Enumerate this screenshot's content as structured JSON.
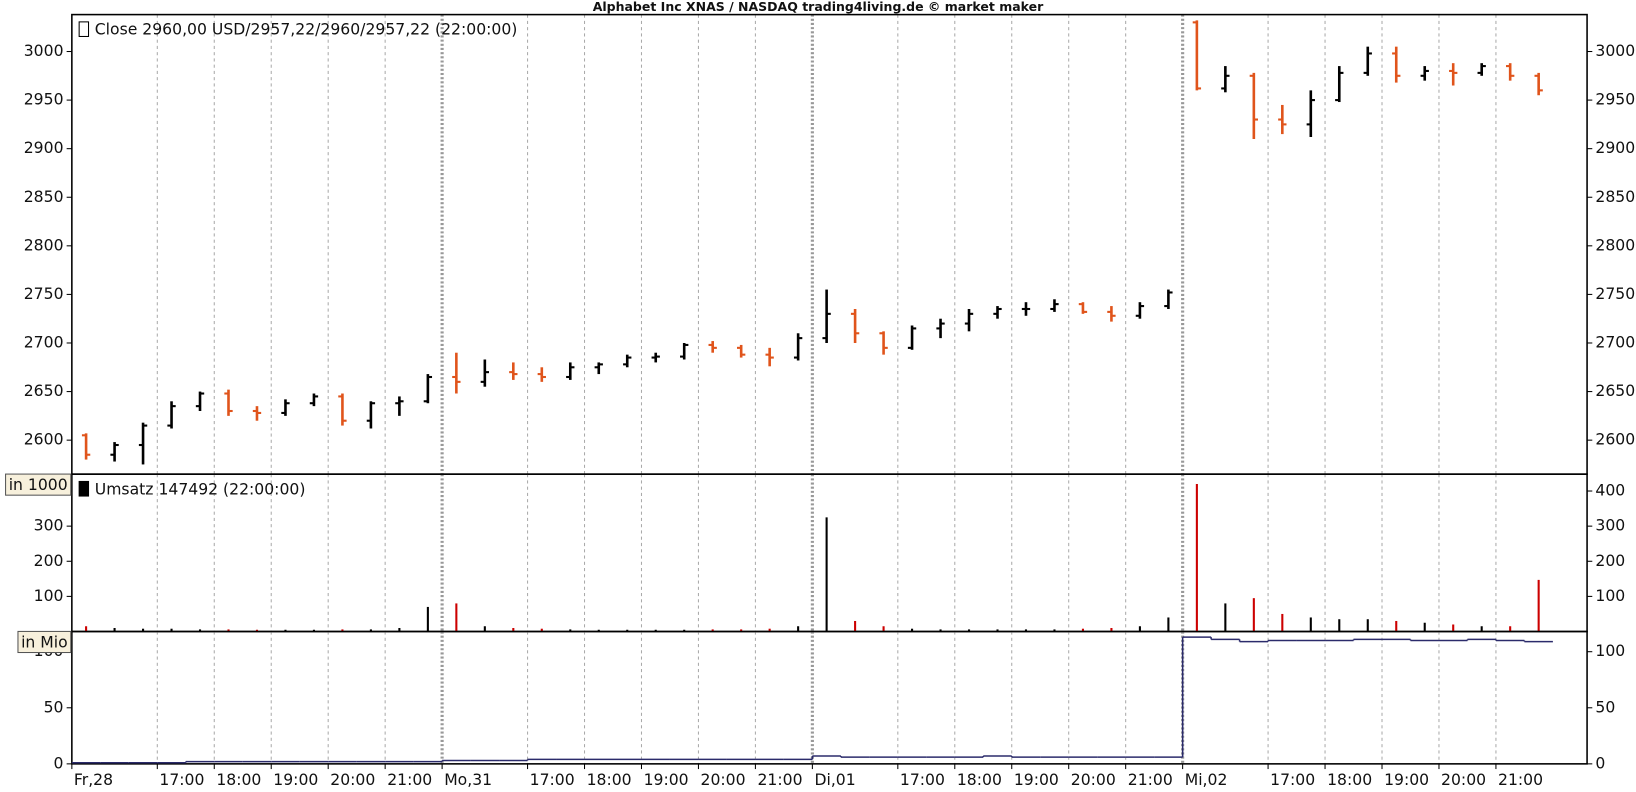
{
  "chart_data": [
    {
      "type": "ohlc",
      "title": "Alphabet Inc XNAS / NASDAQ trading4living.de © market maker",
      "label": "Close 2960,00 USD/2957,22/2960/2957,22 (22:00:00)",
      "up_color": "#000000",
      "down_color": "#e0541b",
      "xlim": [
        0,
        26.6
      ],
      "ylim": [
        2565,
        3038
      ],
      "yticks": [
        2600,
        2650,
        2700,
        2750,
        2800,
        2850,
        2900,
        2950,
        3000
      ],
      "x": [
        0.25,
        0.75,
        1.25,
        1.75,
        2.25,
        2.75,
        3.25,
        3.75,
        4.25,
        4.75,
        5.25,
        5.75,
        6.25,
        6.75,
        7.25,
        7.75,
        8.25,
        8.75,
        9.25,
        9.75,
        10.25,
        10.75,
        11.25,
        11.75,
        12.25,
        12.75,
        13.25,
        13.75,
        14.25,
        14.75,
        15.25,
        15.75,
        16.25,
        16.75,
        17.25,
        17.75,
        18.25,
        18.75,
        19.25,
        19.75,
        20.25,
        20.75,
        21.25,
        21.75,
        22.25,
        22.75,
        23.25,
        23.75,
        24.25,
        24.75,
        25.25,
        25.75
      ],
      "open": [
        2605,
        2585,
        2595,
        2615,
        2635,
        2648,
        2630,
        2628,
        2638,
        2645,
        2620,
        2638,
        2640,
        2665,
        2660,
        2670,
        2668,
        2665,
        2675,
        2678,
        2685,
        2686,
        2698,
        2695,
        2688,
        2685,
        2705,
        2730,
        2710,
        2695,
        2715,
        2720,
        2730,
        2735,
        2735,
        2740,
        2732,
        2728,
        2738,
        3030,
        2962,
        2975,
        2930,
        2925,
        2950,
        2978,
        2998,
        2975,
        2980,
        2978,
        2985,
        2975
      ],
      "high": [
        2607,
        2598,
        2618,
        2640,
        2650,
        2652,
        2635,
        2642,
        2648,
        2648,
        2640,
        2645,
        2668,
        2690,
        2683,
        2680,
        2675,
        2680,
        2680,
        2688,
        2690,
        2700,
        2702,
        2698,
        2695,
        2710,
        2755,
        2735,
        2712,
        2718,
        2725,
        2735,
        2738,
        2742,
        2745,
        2742,
        2738,
        2742,
        2755,
        3032,
        2985,
        2978,
        2945,
        2960,
        2985,
        3005,
        3005,
        2985,
        2988,
        2988,
        2988,
        2978
      ],
      "low": [
        2580,
        2578,
        2575,
        2612,
        2630,
        2625,
        2620,
        2625,
        2635,
        2615,
        2612,
        2625,
        2638,
        2648,
        2655,
        2662,
        2660,
        2662,
        2668,
        2675,
        2680,
        2683,
        2690,
        2685,
        2676,
        2682,
        2700,
        2700,
        2688,
        2693,
        2705,
        2712,
        2725,
        2728,
        2732,
        2730,
        2722,
        2725,
        2735,
        2960,
        2958,
        2910,
        2915,
        2912,
        2948,
        2975,
        2968,
        2970,
        2965,
        2975,
        2970,
        2955
      ],
      "close": [
        2585,
        2595,
        2615,
        2635,
        2648,
        2630,
        2628,
        2638,
        2645,
        2620,
        2638,
        2640,
        2665,
        2660,
        2670,
        2668,
        2665,
        2675,
        2678,
        2685,
        2686,
        2698,
        2695,
        2688,
        2685,
        2705,
        2730,
        2710,
        2695,
        2715,
        2720,
        2730,
        2735,
        2735,
        2740,
        2732,
        2728,
        2738,
        2752,
        2962,
        2975,
        2930,
        2925,
        2950,
        2978,
        2998,
        2975,
        2980,
        2978,
        2985,
        2975,
        2960
      ]
    },
    {
      "type": "bar",
      "label": "Umsatz 147492 (22:00:00)",
      "unit_label": "in 1000",
      "up_color": "#000000",
      "down_color": "#cc0000",
      "xlim": [
        0,
        26.6
      ],
      "ylim": [
        0,
        448
      ],
      "yticks": [
        100,
        200,
        300,
        400
      ],
      "x": [
        0.25,
        0.75,
        1.25,
        1.75,
        2.25,
        2.75,
        3.25,
        3.75,
        4.25,
        4.75,
        5.25,
        5.75,
        6.25,
        6.75,
        7.25,
        7.75,
        8.25,
        8.75,
        9.25,
        9.75,
        10.25,
        10.75,
        11.25,
        11.75,
        12.25,
        12.75,
        13.25,
        13.75,
        14.25,
        14.75,
        15.25,
        15.75,
        16.25,
        16.75,
        17.25,
        17.75,
        18.25,
        18.75,
        19.25,
        19.75,
        20.25,
        20.75,
        21.25,
        21.75,
        22.25,
        22.75,
        23.25,
        23.75,
        24.25,
        24.75,
        25.25,
        25.75
      ],
      "values": [
        15,
        10,
        8,
        8,
        6,
        6,
        5,
        5,
        5,
        6,
        6,
        10,
        70,
        80,
        15,
        10,
        8,
        6,
        5,
        5,
        5,
        5,
        6,
        6,
        8,
        15,
        325,
        30,
        15,
        8,
        6,
        6,
        6,
        6,
        6,
        8,
        10,
        15,
        40,
        420,
        80,
        95,
        50,
        40,
        35,
        35,
        30,
        25,
        20,
        15,
        15,
        147
      ],
      "direction": [
        -1,
        1,
        1,
        1,
        1,
        -1,
        -1,
        1,
        1,
        -1,
        1,
        1,
        1,
        -1,
        1,
        -1,
        -1,
        1,
        1,
        1,
        1,
        1,
        -1,
        -1,
        -1,
        1,
        1,
        -1,
        -1,
        1,
        1,
        1,
        1,
        1,
        1,
        -1,
        -1,
        1,
        1,
        -1,
        1,
        -1,
        -1,
        1,
        1,
        1,
        -1,
        1,
        -1,
        1,
        -1,
        -1
      ]
    },
    {
      "type": "line",
      "unit_label": "in Mio",
      "color": "#2b2b6b",
      "xlim": [
        0,
        26.6
      ],
      "ylim": [
        0,
        118
      ],
      "yticks": [
        0,
        50,
        100
      ],
      "x": [
        0.25,
        0.75,
        1.25,
        1.75,
        2.25,
        2.75,
        3.25,
        3.75,
        4.25,
        4.75,
        5.25,
        5.75,
        6.25,
        6.75,
        7.25,
        7.75,
        8.25,
        8.75,
        9.25,
        9.75,
        10.25,
        10.75,
        11.25,
        11.75,
        12.25,
        12.75,
        13.25,
        13.75,
        14.25,
        14.75,
        15.25,
        15.75,
        16.25,
        16.75,
        17.25,
        17.75,
        18.25,
        18.75,
        19.25,
        19.75,
        20.25,
        20.75,
        21.25,
        21.75,
        22.25,
        22.75,
        23.25,
        23.75,
        24.25,
        24.75,
        25.25,
        25.75
      ],
      "values": [
        1,
        1,
        1,
        1,
        2,
        2,
        2,
        2,
        2,
        2,
        2,
        2,
        2,
        3,
        3,
        3,
        4,
        4,
        4,
        4,
        4,
        4,
        4,
        4,
        4,
        4,
        7,
        6,
        6,
        6,
        6,
        6,
        7,
        6,
        6,
        6,
        6,
        6,
        6,
        113,
        111,
        109,
        110,
        110,
        110,
        111,
        111,
        110,
        110,
        111,
        110,
        109
      ],
      "xticks": [
        {
          "value": 0,
          "label": "Fr,28"
        },
        {
          "value": 1.5,
          "label": "17:00"
        },
        {
          "value": 2.5,
          "label": "18:00"
        },
        {
          "value": 3.5,
          "label": "19:00"
        },
        {
          "value": 4.5,
          "label": "20:00"
        },
        {
          "value": 5.5,
          "label": "21:00"
        },
        {
          "value": 6.5,
          "label": "Mo,31"
        },
        {
          "value": 8,
          "label": "17:00"
        },
        {
          "value": 9,
          "label": "18:00"
        },
        {
          "value": 10,
          "label": "19:00"
        },
        {
          "value": 11,
          "label": "20:00"
        },
        {
          "value": 12,
          "label": "21:00"
        },
        {
          "value": 13,
          "label": "Di,01"
        },
        {
          "value": 14.5,
          "label": "17:00"
        },
        {
          "value": 15.5,
          "label": "18:00"
        },
        {
          "value": 16.5,
          "label": "19:00"
        },
        {
          "value": 17.5,
          "label": "20:00"
        },
        {
          "value": 18.5,
          "label": "21:00"
        },
        {
          "value": 19.5,
          "label": "Mi,02"
        },
        {
          "value": 21,
          "label": "17:00"
        },
        {
          "value": 22,
          "label": "18:00"
        },
        {
          "value": 23,
          "label": "19:00"
        },
        {
          "value": 24,
          "label": "20:00"
        },
        {
          "value": 25,
          "label": "21:00"
        }
      ]
    }
  ]
}
